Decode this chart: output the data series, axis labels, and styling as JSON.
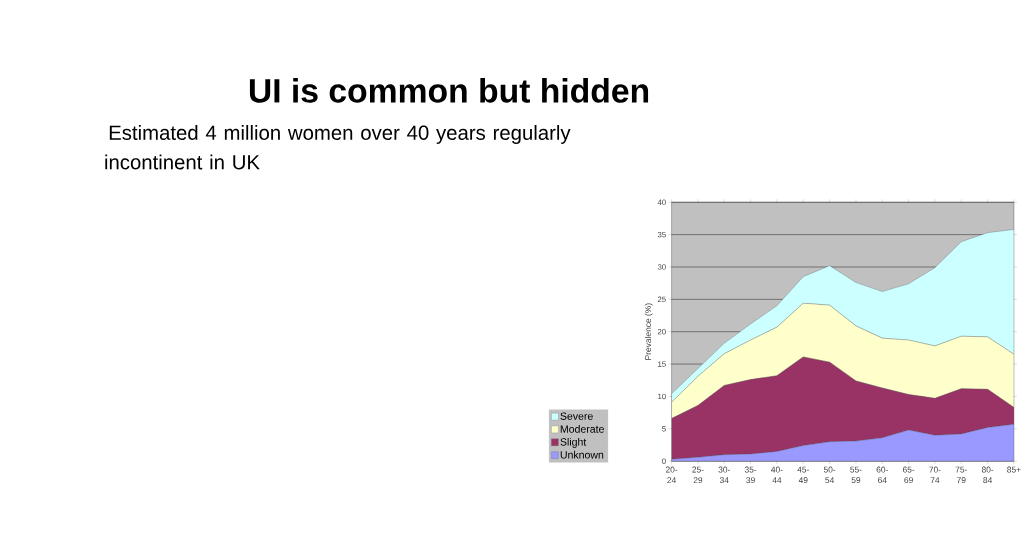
{
  "chart_data": {
    "type": "area",
    "title": "UI is common but hidden",
    "subtitle": "Estimated 4 million women over 40 years regularly incontinent in UK",
    "ylabel": "Prevalence (%)",
    "categories": [
      "20-24",
      "25-29",
      "30-34",
      "35-39",
      "40-44",
      "45-49",
      "50-54",
      "55-59",
      "60-64",
      "65-69",
      "70-74",
      "75-79",
      "80-84",
      "85+"
    ],
    "stacked": true,
    "series": [
      {
        "name": "Unknown",
        "color": "#9999ff",
        "values": [
          0.3,
          0.6,
          1.0,
          1.1,
          1.5,
          2.4,
          3.0,
          3.1,
          3.6,
          4.8,
          4.0,
          4.2,
          5.2,
          5.7
        ]
      },
      {
        "name": "Slight",
        "color": "#993366",
        "values": [
          6.3,
          8.0,
          10.7,
          11.5,
          11.7,
          13.7,
          12.3,
          9.3,
          7.7,
          5.5,
          5.7,
          7.0,
          5.9,
          2.6
        ]
      },
      {
        "name": "Moderate",
        "color": "#ffffcc",
        "values": [
          2.5,
          4.5,
          4.9,
          6.1,
          7.5,
          8.3,
          8.8,
          8.5,
          7.7,
          8.4,
          8.1,
          8.1,
          8.1,
          8.2
        ]
      },
      {
        "name": "Severe",
        "color": "#ccffff",
        "values": [
          1.3,
          1.2,
          1.6,
          2.5,
          3.3,
          4.1,
          6.1,
          6.7,
          7.2,
          8.7,
          12.1,
          14.6,
          16.1,
          19.3
        ]
      }
    ],
    "ylim": [
      0,
      40
    ],
    "yticks": [
      0,
      5,
      10,
      15,
      20,
      25,
      30,
      35,
      40
    ],
    "grid": "y",
    "legend": "left"
  }
}
